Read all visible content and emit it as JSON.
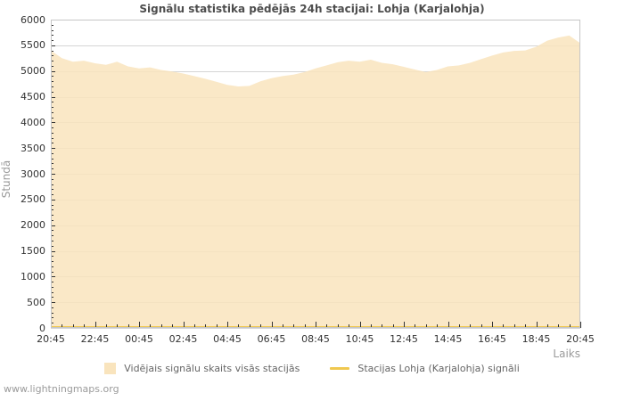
{
  "page": {
    "watermark": "www.lightningmaps.org"
  },
  "chart_data": {
    "type": "area",
    "title": "Signālu statistika pēdējās 24h stacijai: Lohja (Karjalohja)",
    "xlabel": "Laiks",
    "ylabel": "Stundā",
    "ylim": [
      0,
      6000
    ],
    "y_ticks": [
      0,
      500,
      1000,
      1500,
      2000,
      2500,
      3000,
      3500,
      4000,
      4500,
      5000,
      5500,
      6000
    ],
    "y_minor_step": 100,
    "x_ticks": [
      "20:45",
      "22:45",
      "00:45",
      "02:45",
      "04:45",
      "06:45",
      "08:45",
      "10:45",
      "12:45",
      "14:45",
      "16:45",
      "18:45",
      "20:45"
    ],
    "x_minor_ticks_per_major": 4,
    "sample_interval_minutes": 30,
    "grid": "horizontal",
    "grid_color": "#d5d5d5",
    "border_color": "#c6c6c6",
    "tick_color": "#333333",
    "legend_position": "bottom",
    "series": [
      {
        "name": "Vidējais signālu skaits visās stacijās",
        "type": "area",
        "color": "#f9e4bd",
        "values": [
          5400,
          5250,
          5180,
          5200,
          5150,
          5120,
          5180,
          5090,
          5050,
          5070,
          5020,
          4990,
          4950,
          4900,
          4850,
          4790,
          4730,
          4700,
          4710,
          4800,
          4860,
          4900,
          4930,
          4980,
          5050,
          5110,
          5170,
          5200,
          5180,
          5220,
          5160,
          5130,
          5080,
          5030,
          4980,
          5020,
          5090,
          5110,
          5160,
          5230,
          5300,
          5360,
          5390,
          5400,
          5470,
          5590,
          5650,
          5690,
          5540
        ]
      },
      {
        "name": "Stacijas Lohja (Karjalohja) signāli",
        "type": "line",
        "color": "#f0c84f",
        "values": [
          0,
          0,
          0,
          0,
          0,
          0,
          0,
          0,
          0,
          0,
          0,
          0,
          0,
          0,
          0,
          0,
          0,
          0,
          0,
          0,
          0,
          0,
          0,
          0,
          0,
          0,
          0,
          0,
          0,
          0,
          0,
          0,
          0,
          0,
          0,
          0,
          0,
          0,
          0,
          0,
          0,
          0,
          0,
          0,
          0,
          0,
          0,
          0,
          0
        ]
      }
    ]
  }
}
